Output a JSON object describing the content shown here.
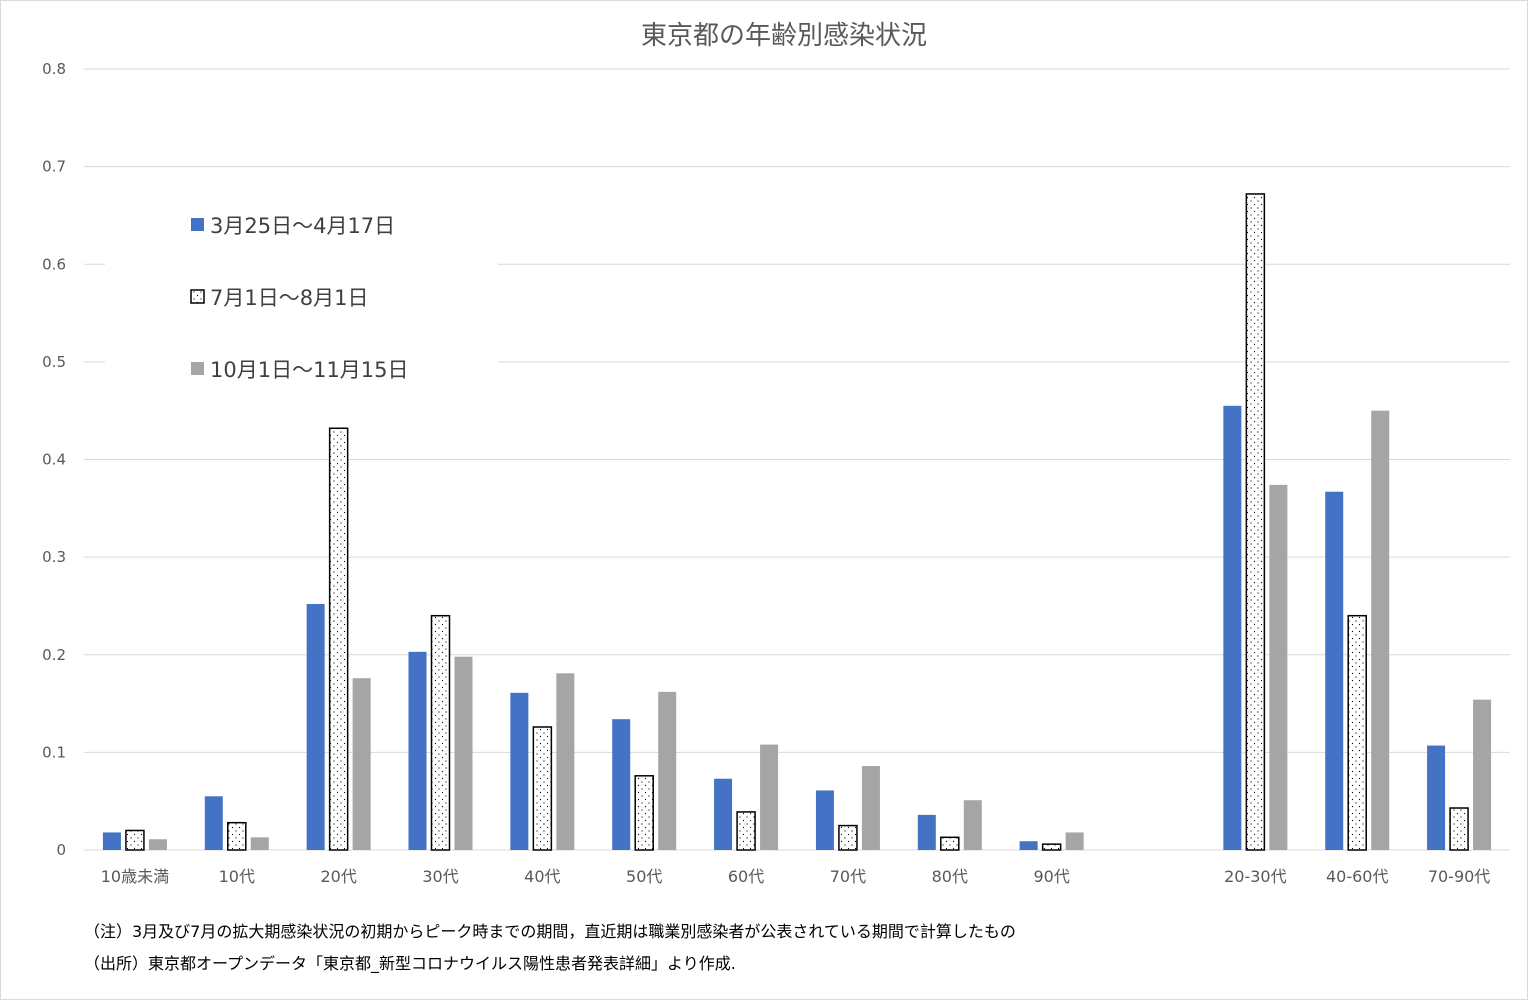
{
  "chart_data": {
    "type": "bar",
    "title": "東京都の年齢別感染状況",
    "xlabel": "",
    "ylabel": "",
    "ylim": [
      0,
      0.8
    ],
    "yticks": [
      "0",
      "0.1",
      "0.2",
      "0.3",
      "0.4",
      "0.5",
      "0.6",
      "0.7",
      "0.8"
    ],
    "grid": true,
    "legend_position": "top-left",
    "categories": [
      "10歳未満",
      "10代",
      "20代",
      "30代",
      "40代",
      "50代",
      "60代",
      "70代",
      "80代",
      "90代",
      "",
      "20-30代",
      "40-60代",
      "70-90代"
    ],
    "series": [
      {
        "name": "3月25日～4月17日",
        "style": "solid",
        "color": "#4472c4",
        "values": [
          0.018,
          0.055,
          0.252,
          0.203,
          0.161,
          0.134,
          0.073,
          0.061,
          0.036,
          0.009,
          null,
          0.455,
          0.367,
          0.107
        ]
      },
      {
        "name": "7月1日～8月1日",
        "style": "dotted",
        "color": "#ffffff",
        "values": [
          0.02,
          0.028,
          0.432,
          0.24,
          0.126,
          0.076,
          0.039,
          0.025,
          0.013,
          0.006,
          null,
          0.672,
          0.24,
          0.043
        ]
      },
      {
        "name": "10月1日～11月15日",
        "style": "solid",
        "color": "#a5a5a5",
        "values": [
          0.011,
          0.013,
          0.176,
          0.198,
          0.181,
          0.162,
          0.108,
          0.086,
          0.051,
          0.018,
          null,
          0.374,
          0.45,
          0.154
        ]
      }
    ]
  },
  "notes": [
    "（注）3月及び7月の拡大期感染状況の初期からピーク時までの期間，直近期は職業別感染者が公表されている期間で計算したもの",
    "（出所）東京都オープンデータ「東京都_新型コロナウイルス陽性患者発表詳細」より作成."
  ]
}
